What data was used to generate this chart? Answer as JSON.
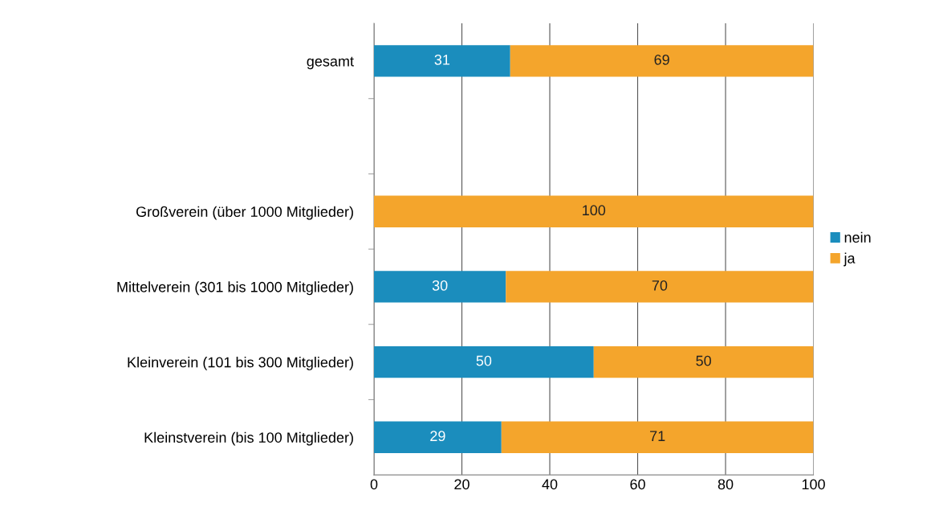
{
  "chart_data": {
    "type": "bar",
    "orientation": "horizontal",
    "stacked": true,
    "categories": [
      "gesamt",
      null,
      "Großverein (über 1000 Mitglieder)",
      "Mittelverein (301 bis 1000 Mitglieder)",
      "Kleinverein (101 bis 300 Mitglieder)",
      "Kleinstverein (bis 100 Mitglieder)"
    ],
    "series": [
      {
        "name": "nein",
        "color": "#1b8dbd",
        "values": [
          31,
          null,
          0,
          30,
          50,
          29
        ],
        "value_labels": [
          "31",
          null,
          null,
          "30",
          "50",
          "29"
        ]
      },
      {
        "name": "ja",
        "color": "#f4a52c",
        "values": [
          69,
          null,
          100,
          70,
          50,
          71
        ],
        "value_labels": [
          "69",
          null,
          "100",
          "70",
          "50",
          "71"
        ]
      }
    ],
    "xlim": [
      0,
      100
    ],
    "xticks": [
      0,
      20,
      40,
      60,
      80,
      100
    ],
    "grid": "x",
    "legend": "right"
  }
}
